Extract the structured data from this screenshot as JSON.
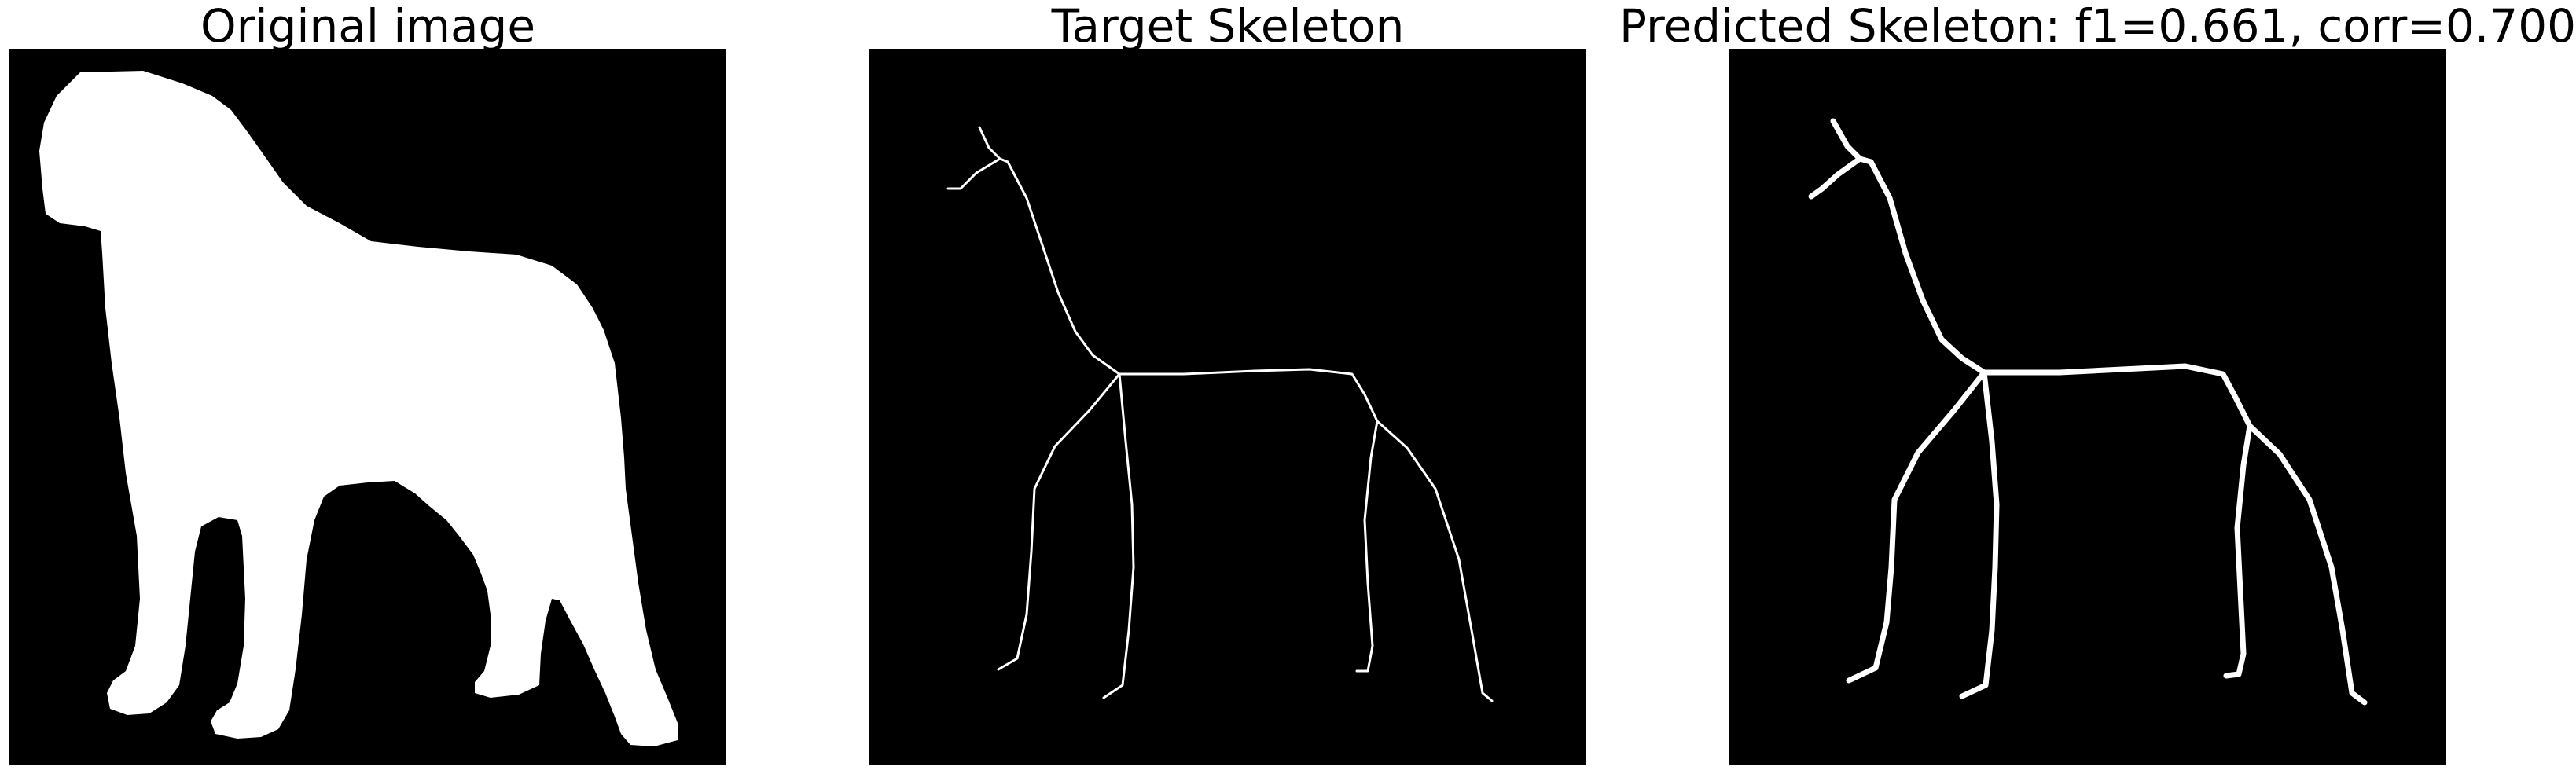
{
  "panels": [
    {
      "title": "Original image"
    },
    {
      "title": "Target Skeleton"
    },
    {
      "title": "Predicted Skeleton: f1=0.661, corr=0.700"
    }
  ],
  "colors": {
    "background": "#000000",
    "foreground": "#ffffff",
    "title": "#000000"
  }
}
